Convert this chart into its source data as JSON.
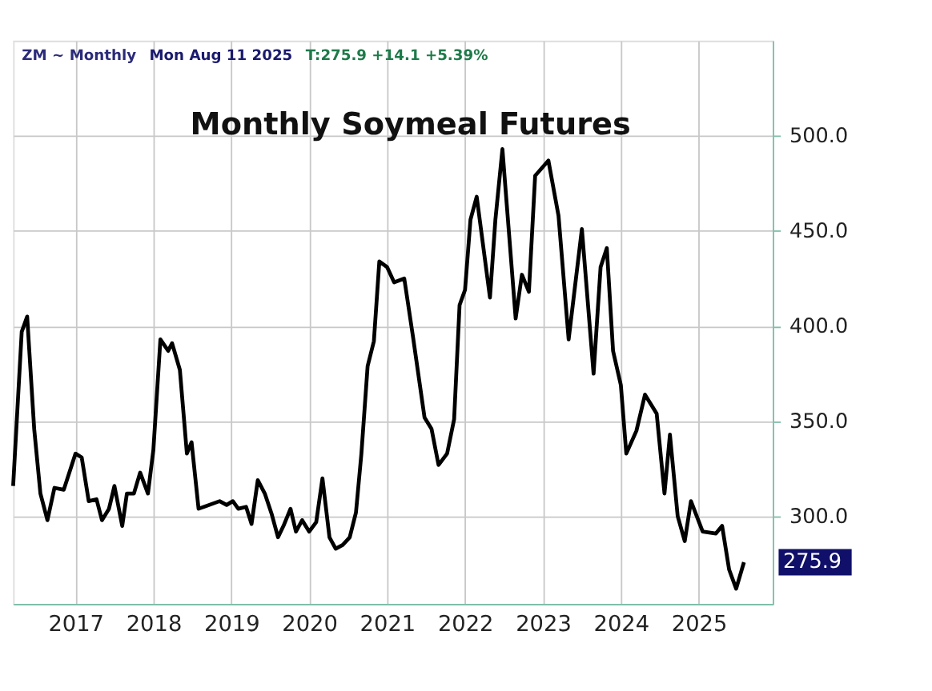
{
  "chart_data": {
    "type": "line",
    "title": "Monthly Soymeal Futures",
    "annotations": [
      "ZM ~ Monthly",
      "Mon Aug 11 2025",
      "T:275.9 +14.1 +5.39%",
      "275.9"
    ],
    "series": [
      {
        "color": "#000000",
        "x": [
          2016.2,
          2016.31,
          2016.38,
          2016.47,
          2016.55,
          2016.64,
          2016.73,
          2016.85,
          2017.0,
          2017.08,
          2017.17,
          2017.27,
          2017.34,
          2017.43,
          2017.5,
          2017.6,
          2017.66,
          2017.75,
          2017.83,
          2017.93,
          2018.0,
          2018.09,
          2018.19,
          2018.24,
          2018.34,
          2018.43,
          2018.49,
          2018.58,
          2018.85,
          2018.94,
          2019.02,
          2019.09,
          2019.19,
          2019.26,
          2019.34,
          2019.43,
          2019.52,
          2019.6,
          2019.67,
          2019.76,
          2019.83,
          2019.91,
          2020.0,
          2020.09,
          2020.17,
          2020.26,
          2020.34,
          2020.43,
          2020.52,
          2020.6,
          2020.67,
          2020.75,
          2020.83,
          2020.9,
          2021.0,
          2021.09,
          2021.22,
          2021.33,
          2021.48,
          2021.57,
          2021.66,
          2021.77,
          2021.86,
          2021.93,
          2022.0,
          2022.07,
          2022.15,
          2022.32,
          2022.39,
          2022.48,
          2022.65,
          2022.73,
          2022.82,
          2022.9,
          2023.07,
          2023.2,
          2023.33,
          2023.5,
          2023.65,
          2023.74,
          2023.82,
          2023.9,
          2024.0,
          2024.07,
          2024.2,
          2024.31,
          2024.46,
          2024.56,
          2024.63,
          2024.73,
          2024.82,
          2024.9,
          2025.05,
          2025.22,
          2025.3,
          2025.39,
          2025.48,
          2025.58
        ],
        "values": [
          316,
          397,
          405,
          346,
          312,
          298,
          315,
          314,
          333,
          331,
          308,
          309,
          298,
          304,
          316,
          295,
          312,
          312,
          323,
          312,
          335,
          393,
          387,
          391,
          377,
          333,
          339,
          304,
          308,
          306,
          308,
          304,
          305,
          296,
          319,
          312,
          301,
          289,
          295,
          304,
          292,
          298,
          292,
          297,
          320,
          289,
          283,
          285,
          289,
          302,
          333,
          379,
          392,
          434,
          431,
          423,
          425,
          395,
          352,
          346,
          327,
          333,
          351,
          411,
          419,
          456,
          468,
          415,
          456,
          493,
          404,
          427,
          418,
          479,
          487,
          458,
          393,
          451,
          375,
          431,
          441,
          387,
          369,
          333,
          345,
          364,
          354,
          312,
          343,
          300,
          287,
          308,
          292,
          291,
          295,
          272,
          262,
          275.9
        ]
      }
    ],
    "xlim": [
      2016.2,
      2025.95
    ],
    "xticks": [
      2017,
      2018,
      2019,
      2020,
      2021,
      2022,
      2023,
      2024,
      2025
    ],
    "ylim": [
      254,
      550
    ],
    "yticks": [
      {
        "value": 300,
        "label": "300.0"
      },
      {
        "value": 350,
        "label": "350.0"
      },
      {
        "value": 400,
        "label": "400.0"
      },
      {
        "value": 450,
        "label": "450.0"
      },
      {
        "value": 500,
        "label": "500.0"
      }
    ],
    "grid": true,
    "line_style": "solid",
    "marker": "none"
  }
}
